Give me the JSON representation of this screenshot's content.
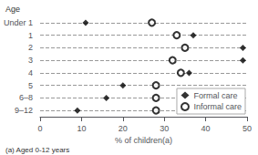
{
  "chart_data": {
    "type": "scatter",
    "xlabel": "% of children(a)",
    "ylabel": "Age",
    "note": "(a) Aged 0-12 years",
    "categories": [
      "Under 1",
      "1",
      "2",
      "3",
      "4",
      "5",
      "6–8",
      "9–12"
    ],
    "series": [
      {
        "name": "Formal care",
        "color": "#000000",
        "marker": "diamond",
        "values": [
          11,
          37,
          49,
          49,
          36,
          20,
          16,
          9
        ]
      },
      {
        "name": "Informal care",
        "color": "#000000",
        "marker": "open_circle",
        "values": [
          27,
          33,
          35,
          32,
          34,
          28,
          28,
          28
        ]
      }
    ],
    "xlim": [
      0,
      50
    ],
    "xticks": [
      0,
      10,
      20,
      30,
      40,
      50
    ],
    "grid": true,
    "legend": "lower right"
  }
}
